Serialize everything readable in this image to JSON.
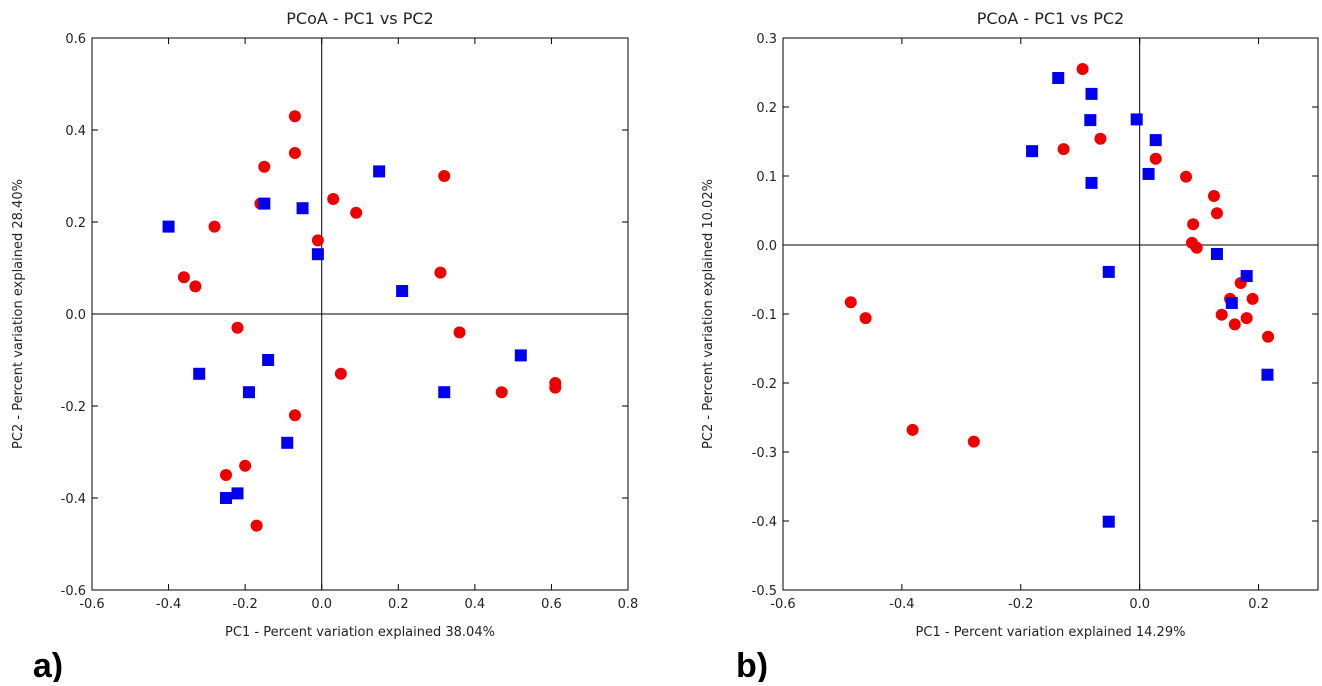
{
  "chart_data": [
    {
      "type": "scatter",
      "title": "PCoA - PC1 vs PC2",
      "panel_label": "a)",
      "x_label": "PC1 - Percent variation explained 38.04%",
      "y_label": "PC2 - Percent variation explained 28.40%",
      "xlim": [
        -0.6,
        0.8
      ],
      "ylim": [
        -0.6,
        0.6
      ],
      "xticks": [
        -0.6,
        -0.4,
        -0.2,
        {
          "value": 0,
          "label": "0.0"
        },
        0.2,
        0.4,
        0.6,
        0.8
      ],
      "yticks": [
        -0.6,
        -0.4,
        -0.2,
        {
          "value": 0,
          "label": "0.0"
        },
        0.2,
        0.4,
        0.6
      ],
      "zero_lines": true,
      "series": [
        {
          "color": "#ee0000",
          "marker": "circle",
          "x": [
            -0.07,
            -0.07,
            -0.15,
            -0.16,
            -0.28,
            0.03,
            0.09,
            -0.01,
            0.32,
            -0.36,
            -0.33,
            0.31,
            0.36,
            -0.22,
            0.05,
            0.47,
            0.61,
            0.61,
            -0.07,
            -0.2,
            -0.25,
            -0.17
          ],
          "values": [
            0.43,
            0.35,
            0.32,
            0.24,
            0.19,
            0.25,
            0.22,
            0.16,
            0.3,
            0.08,
            0.06,
            0.09,
            -0.04,
            -0.03,
            -0.13,
            -0.17,
            -0.15,
            -0.16,
            -0.22,
            -0.33,
            -0.35,
            -0.46
          ]
        },
        {
          "color": "#0000ee",
          "marker": "square",
          "x": [
            -0.4,
            -0.15,
            -0.05,
            0.15,
            -0.01,
            0.21,
            -0.32,
            -0.14,
            -0.19,
            0.32,
            0.52,
            -0.09,
            -0.25,
            -0.22
          ],
          "values": [
            0.19,
            0.24,
            0.23,
            0.31,
            0.13,
            0.05,
            -0.13,
            -0.1,
            -0.17,
            -0.17,
            -0.09,
            -0.28,
            -0.4,
            -0.39
          ]
        }
      ]
    },
    {
      "type": "scatter",
      "title": "PCoA - PC1 vs PC2",
      "panel_label": "b)",
      "x_label": "PC1 - Percent variation explained 14.29%",
      "y_label": "PC2 - Percent variation explained 10.02%",
      "xlim": [
        -0.6,
        0.3
      ],
      "ylim": [
        -0.5,
        0.3
      ],
      "xticks": [
        -0.6,
        -0.4,
        -0.2,
        {
          "value": 0,
          "label": "0.0"
        },
        0.2
      ],
      "yticks": [
        -0.5,
        -0.4,
        -0.3,
        -0.2,
        -0.1,
        {
          "value": 0,
          "label": "0.0"
        },
        0.1,
        0.2,
        0.3
      ],
      "zero_lines": true,
      "series": [
        {
          "color": "#ee0000",
          "marker": "circle",
          "x": [
            -0.096,
            -0.066,
            -0.128,
            0.027,
            0.078,
            0.125,
            0.13,
            0.09,
            0.088,
            0.096,
            0.152,
            0.138,
            0.16,
            0.18,
            0.17,
            0.19,
            0.216,
            -0.486,
            -0.461,
            -0.382,
            -0.279
          ],
          "values": [
            0.255,
            0.154,
            0.139,
            0.125,
            0.099,
            0.071,
            0.046,
            0.03,
            0.003,
            -0.004,
            -0.078,
            -0.101,
            -0.115,
            -0.106,
            -0.055,
            -0.078,
            -0.133,
            -0.083,
            -0.106,
            -0.268,
            -0.285
          ]
        },
        {
          "color": "#0000ee",
          "marker": "square",
          "x": [
            -0.137,
            -0.081,
            -0.083,
            -0.181,
            -0.081,
            -0.005,
            0.027,
            0.015,
            -0.052,
            0.13,
            0.18,
            0.155,
            0.215,
            -0.052
          ],
          "values": [
            0.242,
            0.219,
            0.181,
            0.136,
            0.09,
            0.182,
            0.152,
            0.103,
            -0.039,
            -0.013,
            -0.045,
            -0.084,
            -0.188,
            -0.401
          ]
        }
      ]
    }
  ]
}
